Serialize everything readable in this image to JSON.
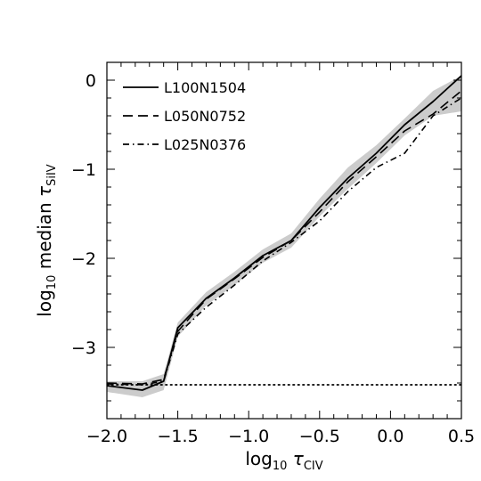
{
  "chart_data": {
    "type": "line",
    "xlabel": "log10 τCIV",
    "ylabel": "log10 median τSiIV",
    "xlabel_parts": {
      "prefix": "log",
      "sub": "10",
      "symbol": "τ",
      "symbol_sub": "CIV"
    },
    "ylabel_parts": {
      "prefix": "log",
      "sub": "10",
      "word": "median",
      "symbol": "τ",
      "symbol_sub": "SiIV"
    },
    "xlim": [
      -2.0,
      0.5
    ],
    "ylim": [
      -3.8,
      0.2
    ],
    "x_ticks": [
      -2.0,
      -1.5,
      -1.0,
      -0.5,
      0.0,
      0.5
    ],
    "x_tick_labels": [
      "−2.0",
      "−1.5",
      "−1.0",
      "−0.5",
      "0.0",
      "0.5"
    ],
    "y_ticks": [
      0,
      -1,
      -2,
      -3
    ],
    "y_tick_labels": [
      "0",
      "−1",
      "−2",
      "−3"
    ],
    "legend_position": "top-left",
    "grid": false,
    "series": [
      {
        "name": "L100N1504",
        "style": "solid",
        "color": "#000000",
        "x": [
          -2.0,
          -1.75,
          -1.6,
          -1.5,
          -1.3,
          -1.1,
          -0.9,
          -0.7,
          -0.5,
          -0.3,
          -0.1,
          0.1,
          0.3,
          0.5
        ],
        "y": [
          -3.43,
          -3.48,
          -3.38,
          -2.78,
          -2.45,
          -2.22,
          -1.97,
          -1.8,
          -1.43,
          -1.1,
          -0.82,
          -0.5,
          -0.24,
          0.05
        ]
      },
      {
        "name": "L050N0752",
        "style": "dashed",
        "color": "#000000",
        "x": [
          -2.0,
          -1.75,
          -1.6,
          -1.5,
          -1.3,
          -1.1,
          -0.9,
          -0.7,
          -0.5,
          -0.3,
          -0.1,
          0.1,
          0.3,
          0.5
        ],
        "y": [
          -3.4,
          -3.41,
          -3.36,
          -2.82,
          -2.46,
          -2.23,
          -1.99,
          -1.8,
          -1.48,
          -1.14,
          -0.86,
          -0.57,
          -0.38,
          -0.12
        ]
      },
      {
        "name": "L025N0376",
        "style": "dashdot",
        "color": "#000000",
        "x": [
          -2.0,
          -1.75,
          -1.6,
          -1.5,
          -1.3,
          -1.1,
          -0.9,
          -0.7,
          -0.5,
          -0.3,
          -0.1,
          0.1,
          0.3,
          0.5
        ],
        "y": [
          -3.41,
          -3.42,
          -3.38,
          -2.85,
          -2.55,
          -2.3,
          -2.03,
          -1.82,
          -1.58,
          -1.25,
          -0.98,
          -0.82,
          -0.4,
          -0.2
        ]
      }
    ],
    "band": {
      "color": "#cccccc",
      "x": [
        -2.0,
        -1.75,
        -1.6,
        -1.5,
        -1.3,
        -1.1,
        -0.9,
        -0.7,
        -0.5,
        -0.3,
        -0.1,
        0.1,
        0.3,
        0.5
      ],
      "upper": [
        -3.38,
        -3.38,
        -3.3,
        -2.72,
        -2.38,
        -2.15,
        -1.9,
        -1.72,
        -1.33,
        -0.98,
        -0.73,
        -0.43,
        -0.12,
        0.05
      ],
      "lower": [
        -3.5,
        -3.56,
        -3.48,
        -2.88,
        -2.53,
        -2.3,
        -2.05,
        -1.88,
        -1.53,
        -1.22,
        -0.93,
        -0.62,
        -0.4,
        -0.35
      ]
    },
    "reference_line": {
      "style": "dotted",
      "color": "#000000",
      "y": -3.42
    }
  }
}
